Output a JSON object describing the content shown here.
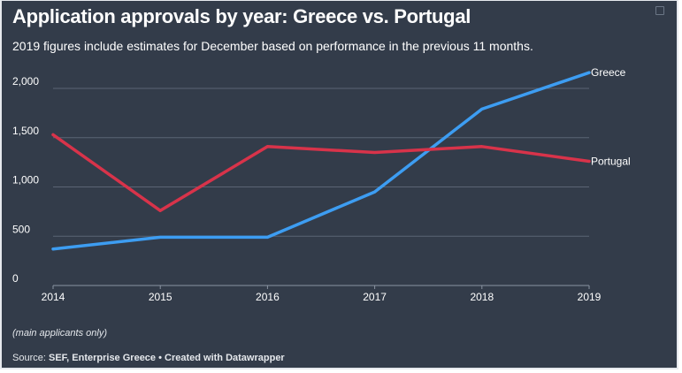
{
  "title": "Application approvals by year: Greece vs. Portugal",
  "subtitle": "2019 figures include estimates for December based on performance in the previous 11 months.",
  "note": "(main applicants only)",
  "source": {
    "label": "Source:",
    "sources": "SEF, Enterprise Greece",
    "separator": " • ",
    "credit": "Created with Datawrapper"
  },
  "colors": {
    "background": "#333c4a",
    "text": "#ffffff",
    "grid": "#5b6574",
    "greece": "#3d9df2",
    "portugal": "#d8334a"
  },
  "chart_data": {
    "type": "line",
    "x": [
      2014,
      2015,
      2016,
      2017,
      2018,
      2019
    ],
    "x_tick_labels": [
      "2014",
      "2015",
      "2016",
      "2017",
      "2018",
      "2019"
    ],
    "ylim": [
      0,
      2000
    ],
    "y_ticks": [
      0,
      500,
      1000,
      1500,
      2000
    ],
    "y_tick_labels": [
      "0",
      "500",
      "1,000",
      "1,500",
      "2,000"
    ],
    "grid": true,
    "legend": "direct labels at line ends",
    "series": [
      {
        "name": "Greece",
        "values": [
          370,
          490,
          490,
          950,
          1790,
          2160
        ]
      },
      {
        "name": "Portugal",
        "values": [
          1530,
          760,
          1410,
          1350,
          1410,
          1260
        ]
      }
    ]
  }
}
